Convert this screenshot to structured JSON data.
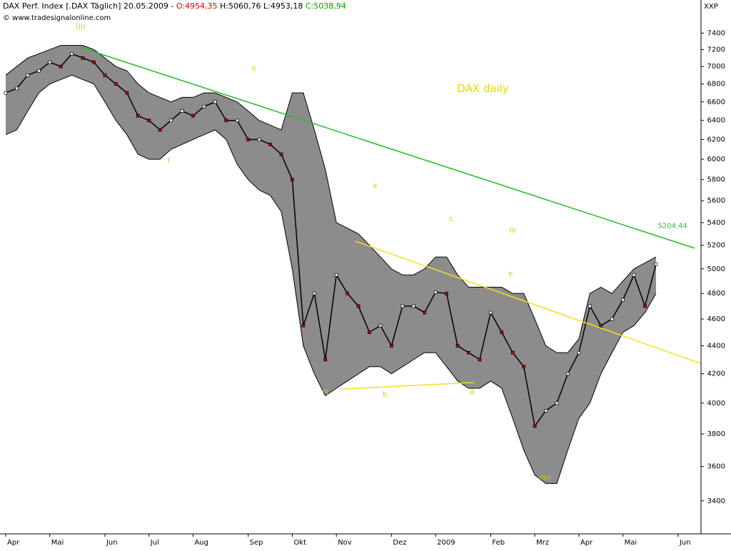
{
  "header": {
    "parts": [
      {
        "text": "DAX Perf. Index [.DAX  Täglich] 20.05.2009 - ",
        "color": "#000000"
      },
      {
        "text": "O:4954,35",
        "color": "#e00000"
      },
      {
        "text": " H:5060,76 L:4953,18 ",
        "color": "#000000"
      },
      {
        "text": "C:5038,94",
        "color": "#00a000"
      }
    ],
    "copyright": "© www.tradesignalonline.com",
    "axis_unit": "XXP"
  },
  "chart_data": {
    "type": "line",
    "log_scale": true,
    "categories": [
      "Apr",
      null,
      null,
      null,
      "Mai",
      null,
      null,
      null,
      null,
      "Jun",
      null,
      null,
      null,
      "Jul",
      null,
      null,
      null,
      "Aug",
      null,
      null,
      null,
      null,
      "Sep",
      null,
      null,
      null,
      "Okt",
      null,
      null,
      null,
      "Nov",
      null,
      null,
      null,
      null,
      "Dez",
      null,
      null,
      null,
      "2009",
      null,
      null,
      null,
      null,
      "Feb",
      null,
      null,
      null,
      "Mrz",
      null,
      null,
      null,
      "Apr",
      null,
      null,
      null,
      "Mai",
      null,
      null,
      null,
      null,
      "Jun",
      null
    ],
    "series": [
      {
        "name": "DAX",
        "color": "#000000",
        "values": [
          6700,
          6750,
          6900,
          6950,
          7050,
          7000,
          7150,
          7100,
          7050,
          6900,
          6800,
          6700,
          6450,
          6400,
          6300,
          6400,
          6500,
          6450,
          6550,
          6600,
          6400,
          6400,
          6200,
          6200,
          6150,
          6050,
          5800,
          4550,
          4800,
          4300,
          4950,
          4800,
          4700,
          4500,
          4550,
          4400,
          4700,
          4700,
          4650,
          4810,
          4800,
          4400,
          4350,
          4300,
          4650,
          4500,
          4350,
          4250,
          3850,
          3950,
          4000,
          4200,
          4350,
          4700,
          4550,
          4600,
          4750,
          4950,
          4700,
          5040,
          null,
          null,
          null
        ]
      },
      {
        "name": "Upper band",
        "color": "#000000",
        "values": [
          6900,
          7000,
          7100,
          7150,
          7200,
          7250,
          7250,
          7250,
          7200,
          7100,
          7000,
          6950,
          6800,
          6700,
          6650,
          6600,
          6650,
          6650,
          6700,
          6700,
          6650,
          6600,
          6500,
          6400,
          6350,
          6300,
          6700,
          6700,
          6300,
          5900,
          5400,
          5350,
          5300,
          5200,
          5100,
          5000,
          4950,
          4950,
          5000,
          5100,
          5100,
          4950,
          4850,
          4850,
          4850,
          4850,
          4800,
          4800,
          4600,
          4400,
          4350,
          4350,
          4450,
          4800,
          4850,
          4800,
          4900,
          5000,
          5050,
          5100,
          null,
          null,
          null
        ]
      },
      {
        "name": "Lower band",
        "color": "#000000",
        "values": [
          6250,
          6300,
          6500,
          6700,
          6800,
          6850,
          6900,
          6850,
          6800,
          6600,
          6400,
          6250,
          6050,
          6000,
          6000,
          6100,
          6150,
          6200,
          6250,
          6300,
          6200,
          5950,
          5800,
          5700,
          5650,
          5500,
          5000,
          4400,
          4200,
          4050,
          4100,
          4150,
          4200,
          4250,
          4250,
          4200,
          4250,
          4300,
          4350,
          4350,
          4250,
          4150,
          4100,
          4100,
          4150,
          4100,
          3900,
          3700,
          3550,
          3500,
          3500,
          3700,
          3900,
          4000,
          4200,
          4350,
          4500,
          4550,
          4650,
          4800,
          null,
          null,
          null
        ]
      }
    ],
    "band_fill": "#8c8c8c",
    "trendlines": [
      {
        "color": "#22bb22",
        "points": [
          [
            6.7,
            7230
          ],
          [
            62.5,
            5175
          ]
        ]
      },
      {
        "color": "#f0e020",
        "points": [
          [
            31.7,
            5236
          ],
          [
            63,
            4274
          ]
        ]
      },
      {
        "color": "#f0e020",
        "points": [
          [
            30.3,
            4094
          ],
          [
            42.5,
            4140
          ]
        ]
      }
    ],
    "annotations": [
      {
        "text": "(II)",
        "x": 6.8,
        "y": 7480,
        "color": "#d8c800"
      },
      {
        "text": "II",
        "x": 22.5,
        "y": 6974,
        "color": "#d8c800"
      },
      {
        "text": "I",
        "x": 14.8,
        "y": 5989,
        "color": "#d8c800"
      },
      {
        "text": "a",
        "x": 33.5,
        "y": 5742,
        "color": "#d8c800"
      },
      {
        "text": "c",
        "x": 40.4,
        "y": 5434,
        "color": "#d8c800"
      },
      {
        "text": "IV",
        "x": 46,
        "y": 5328,
        "color": "#d8c800"
      },
      {
        "text": "e",
        "x": 45.8,
        "y": 4960,
        "color": "#d8c800"
      },
      {
        "text": "III",
        "x": 29,
        "y": 4073,
        "color": "#d8c800"
      },
      {
        "text": "b",
        "x": 34.4,
        "y": 4060,
        "color": "#d8c800"
      },
      {
        "text": "d",
        "x": 42.3,
        "y": 4073,
        "color": "#d8c800"
      },
      {
        "text": "(III)",
        "x": 48.9,
        "y": 3530,
        "color": "#d8c800"
      },
      {
        "text": "DAX daily",
        "x": 43.3,
        "y": 6744,
        "color": "#e8d800"
      },
      {
        "text": "5204.44",
        "x": 60.5,
        "y": 5371,
        "color": "#33bb33"
      }
    ],
    "ylim": [
      3230,
      7800
    ],
    "yticks": [
      3400,
      3600,
      3800,
      4000,
      4200,
      4400,
      4600,
      4800,
      5000,
      5200,
      5400,
      5600,
      5800,
      6000,
      6200,
      6400,
      6600,
      6800,
      7000,
      7200,
      7400
    ]
  }
}
